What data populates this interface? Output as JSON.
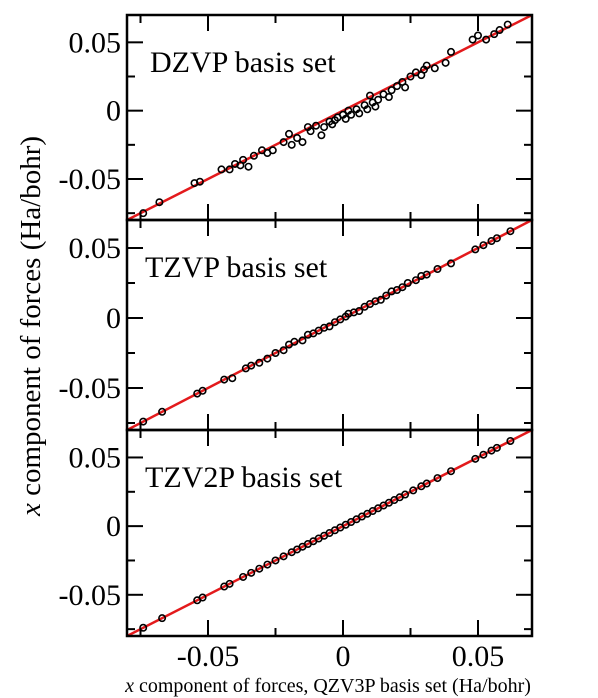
{
  "figure": {
    "xlabel_italic": "x",
    "xlabel_rest": " component of forces, QZV3P basis set (Ha/bohr)",
    "ylabel_italic": "x",
    "ylabel_rest": " component of forces (Ha/bohr)"
  },
  "colors": {
    "fit_line": "#e31a1c",
    "points": "#000000",
    "axes": "#000000"
  },
  "chart_data": [
    {
      "type": "scatter",
      "label": "DZVP basis set",
      "xlim": [
        -0.08,
        0.07
      ],
      "ylim": [
        -0.08,
        0.07
      ],
      "xticks": [
        "-0.05",
        "0",
        "0.05"
      ],
      "yticks": [
        "-0.05",
        "0",
        "0.05"
      ],
      "xtick_values": [
        -0.05,
        0,
        0.05
      ],
      "ytick_values": [
        -0.05,
        0,
        0.05
      ],
      "line": [
        [
          -0.08,
          -0.08
        ],
        [
          0.07,
          0.07
        ]
      ],
      "points": [
        [
          -0.074,
          -0.075
        ],
        [
          -0.068,
          -0.067
        ],
        [
          -0.055,
          -0.053
        ],
        [
          -0.053,
          -0.052
        ],
        [
          -0.045,
          -0.043
        ],
        [
          -0.042,
          -0.043
        ],
        [
          -0.04,
          -0.039
        ],
        [
          -0.038,
          -0.04
        ],
        [
          -0.037,
          -0.036
        ],
        [
          -0.035,
          -0.041
        ],
        [
          -0.033,
          -0.033
        ],
        [
          -0.03,
          -0.029
        ],
        [
          -0.028,
          -0.031
        ],
        [
          -0.026,
          -0.029
        ],
        [
          -0.022,
          -0.023
        ],
        [
          -0.02,
          -0.017
        ],
        [
          -0.019,
          -0.025
        ],
        [
          -0.017,
          -0.02
        ],
        [
          -0.015,
          -0.023
        ],
        [
          -0.013,
          -0.012
        ],
        [
          -0.012,
          -0.015
        ],
        [
          -0.01,
          -0.011
        ],
        [
          -0.008,
          -0.018
        ],
        [
          -0.007,
          -0.012
        ],
        [
          -0.005,
          -0.008
        ],
        [
          -0.004,
          -0.01
        ],
        [
          -0.003,
          -0.007
        ],
        [
          -0.002,
          -0.005
        ],
        [
          0.0,
          -0.003
        ],
        [
          0.001,
          -0.006
        ],
        [
          0.002,
          0.0
        ],
        [
          0.003,
          -0.003
        ],
        [
          0.005,
          0.001
        ],
        [
          0.006,
          -0.002
        ],
        [
          0.008,
          0.004
        ],
        [
          0.009,
          0.001
        ],
        [
          0.01,
          0.011
        ],
        [
          0.011,
          0.006
        ],
        [
          0.012,
          0.003
        ],
        [
          0.013,
          0.008
        ],
        [
          0.015,
          0.012
        ],
        [
          0.017,
          0.01
        ],
        [
          0.018,
          0.015
        ],
        [
          0.02,
          0.018
        ],
        [
          0.022,
          0.021
        ],
        [
          0.023,
          0.017
        ],
        [
          0.025,
          0.025
        ],
        [
          0.027,
          0.028
        ],
        [
          0.029,
          0.026
        ],
        [
          0.03,
          0.03
        ],
        [
          0.031,
          0.033
        ],
        [
          0.034,
          0.031
        ],
        [
          0.038,
          0.035
        ],
        [
          0.04,
          0.043
        ],
        [
          0.048,
          0.052
        ],
        [
          0.05,
          0.055
        ],
        [
          0.053,
          0.052
        ],
        [
          0.056,
          0.056
        ],
        [
          0.058,
          0.059
        ],
        [
          0.061,
          0.063
        ]
      ]
    },
    {
      "type": "scatter",
      "label": "TZVP basis set",
      "xlim": [
        -0.08,
        0.07
      ],
      "ylim": [
        -0.08,
        0.07
      ],
      "xticks": [
        "-0.05",
        "0",
        "0.05"
      ],
      "yticks": [
        "-0.05",
        "0",
        "0.05"
      ],
      "xtick_values": [
        -0.05,
        0,
        0.05
      ],
      "ytick_values": [
        -0.05,
        0,
        0.05
      ],
      "line": [
        [
          -0.08,
          -0.08
        ],
        [
          0.07,
          0.07
        ]
      ],
      "points": [
        [
          -0.074,
          -0.074
        ],
        [
          -0.067,
          -0.067
        ],
        [
          -0.054,
          -0.054
        ],
        [
          -0.052,
          -0.052
        ],
        [
          -0.044,
          -0.044
        ],
        [
          -0.041,
          -0.043
        ],
        [
          -0.036,
          -0.036
        ],
        [
          -0.034,
          -0.034
        ],
        [
          -0.031,
          -0.032
        ],
        [
          -0.028,
          -0.029
        ],
        [
          -0.025,
          -0.025
        ],
        [
          -0.022,
          -0.023
        ],
        [
          -0.02,
          -0.019
        ],
        [
          -0.018,
          -0.017
        ],
        [
          -0.015,
          -0.016
        ],
        [
          -0.013,
          -0.012
        ],
        [
          -0.011,
          -0.011
        ],
        [
          -0.009,
          -0.009
        ],
        [
          -0.007,
          -0.007
        ],
        [
          -0.005,
          -0.006
        ],
        [
          -0.003,
          -0.003
        ],
        [
          -0.001,
          -0.001
        ],
        [
          0.001,
          0.001
        ],
        [
          0.002,
          0.003
        ],
        [
          0.004,
          0.004
        ],
        [
          0.006,
          0.005
        ],
        [
          0.008,
          0.008
        ],
        [
          0.01,
          0.01
        ],
        [
          0.012,
          0.012
        ],
        [
          0.014,
          0.013
        ],
        [
          0.016,
          0.016
        ],
        [
          0.018,
          0.019
        ],
        [
          0.02,
          0.02
        ],
        [
          0.022,
          0.022
        ],
        [
          0.024,
          0.025
        ],
        [
          0.027,
          0.027
        ],
        [
          0.029,
          0.03
        ],
        [
          0.031,
          0.031
        ],
        [
          0.035,
          0.035
        ],
        [
          0.04,
          0.039
        ],
        [
          0.049,
          0.049
        ],
        [
          0.052,
          0.052
        ],
        [
          0.055,
          0.055
        ],
        [
          0.057,
          0.057
        ],
        [
          0.062,
          0.062
        ]
      ]
    },
    {
      "type": "scatter",
      "label": "TZV2P basis set",
      "xlim": [
        -0.08,
        0.07
      ],
      "ylim": [
        -0.08,
        0.07
      ],
      "xticks": [
        "-0.05",
        "0",
        "0.05"
      ],
      "yticks": [
        "-0.05",
        "0",
        "0.05"
      ],
      "xtick_values": [
        -0.05,
        0,
        0.05
      ],
      "ytick_values": [
        -0.05,
        0,
        0.05
      ],
      "line": [
        [
          -0.08,
          -0.08
        ],
        [
          0.07,
          0.07
        ]
      ],
      "points": [
        [
          -0.074,
          -0.074
        ],
        [
          -0.067,
          -0.067
        ],
        [
          -0.054,
          -0.054
        ],
        [
          -0.052,
          -0.052
        ],
        [
          -0.044,
          -0.044
        ],
        [
          -0.042,
          -0.042
        ],
        [
          -0.037,
          -0.037
        ],
        [
          -0.034,
          -0.034
        ],
        [
          -0.031,
          -0.031
        ],
        [
          -0.028,
          -0.028
        ],
        [
          -0.025,
          -0.025
        ],
        [
          -0.022,
          -0.022
        ],
        [
          -0.019,
          -0.019
        ],
        [
          -0.017,
          -0.017
        ],
        [
          -0.015,
          -0.015
        ],
        [
          -0.013,
          -0.013
        ],
        [
          -0.011,
          -0.011
        ],
        [
          -0.009,
          -0.009
        ],
        [
          -0.007,
          -0.007
        ],
        [
          -0.005,
          -0.005
        ],
        [
          -0.003,
          -0.003
        ],
        [
          -0.001,
          -0.001
        ],
        [
          0.001,
          0.001
        ],
        [
          0.003,
          0.003
        ],
        [
          0.005,
          0.005
        ],
        [
          0.007,
          0.007
        ],
        [
          0.009,
          0.009
        ],
        [
          0.011,
          0.011
        ],
        [
          0.013,
          0.013
        ],
        [
          0.015,
          0.015
        ],
        [
          0.017,
          0.017
        ],
        [
          0.019,
          0.019
        ],
        [
          0.021,
          0.021
        ],
        [
          0.023,
          0.023
        ],
        [
          0.026,
          0.026
        ],
        [
          0.029,
          0.029
        ],
        [
          0.031,
          0.031
        ],
        [
          0.035,
          0.035
        ],
        [
          0.04,
          0.04
        ],
        [
          0.049,
          0.049
        ],
        [
          0.052,
          0.052
        ],
        [
          0.055,
          0.055
        ],
        [
          0.057,
          0.057
        ],
        [
          0.062,
          0.062
        ]
      ]
    }
  ]
}
